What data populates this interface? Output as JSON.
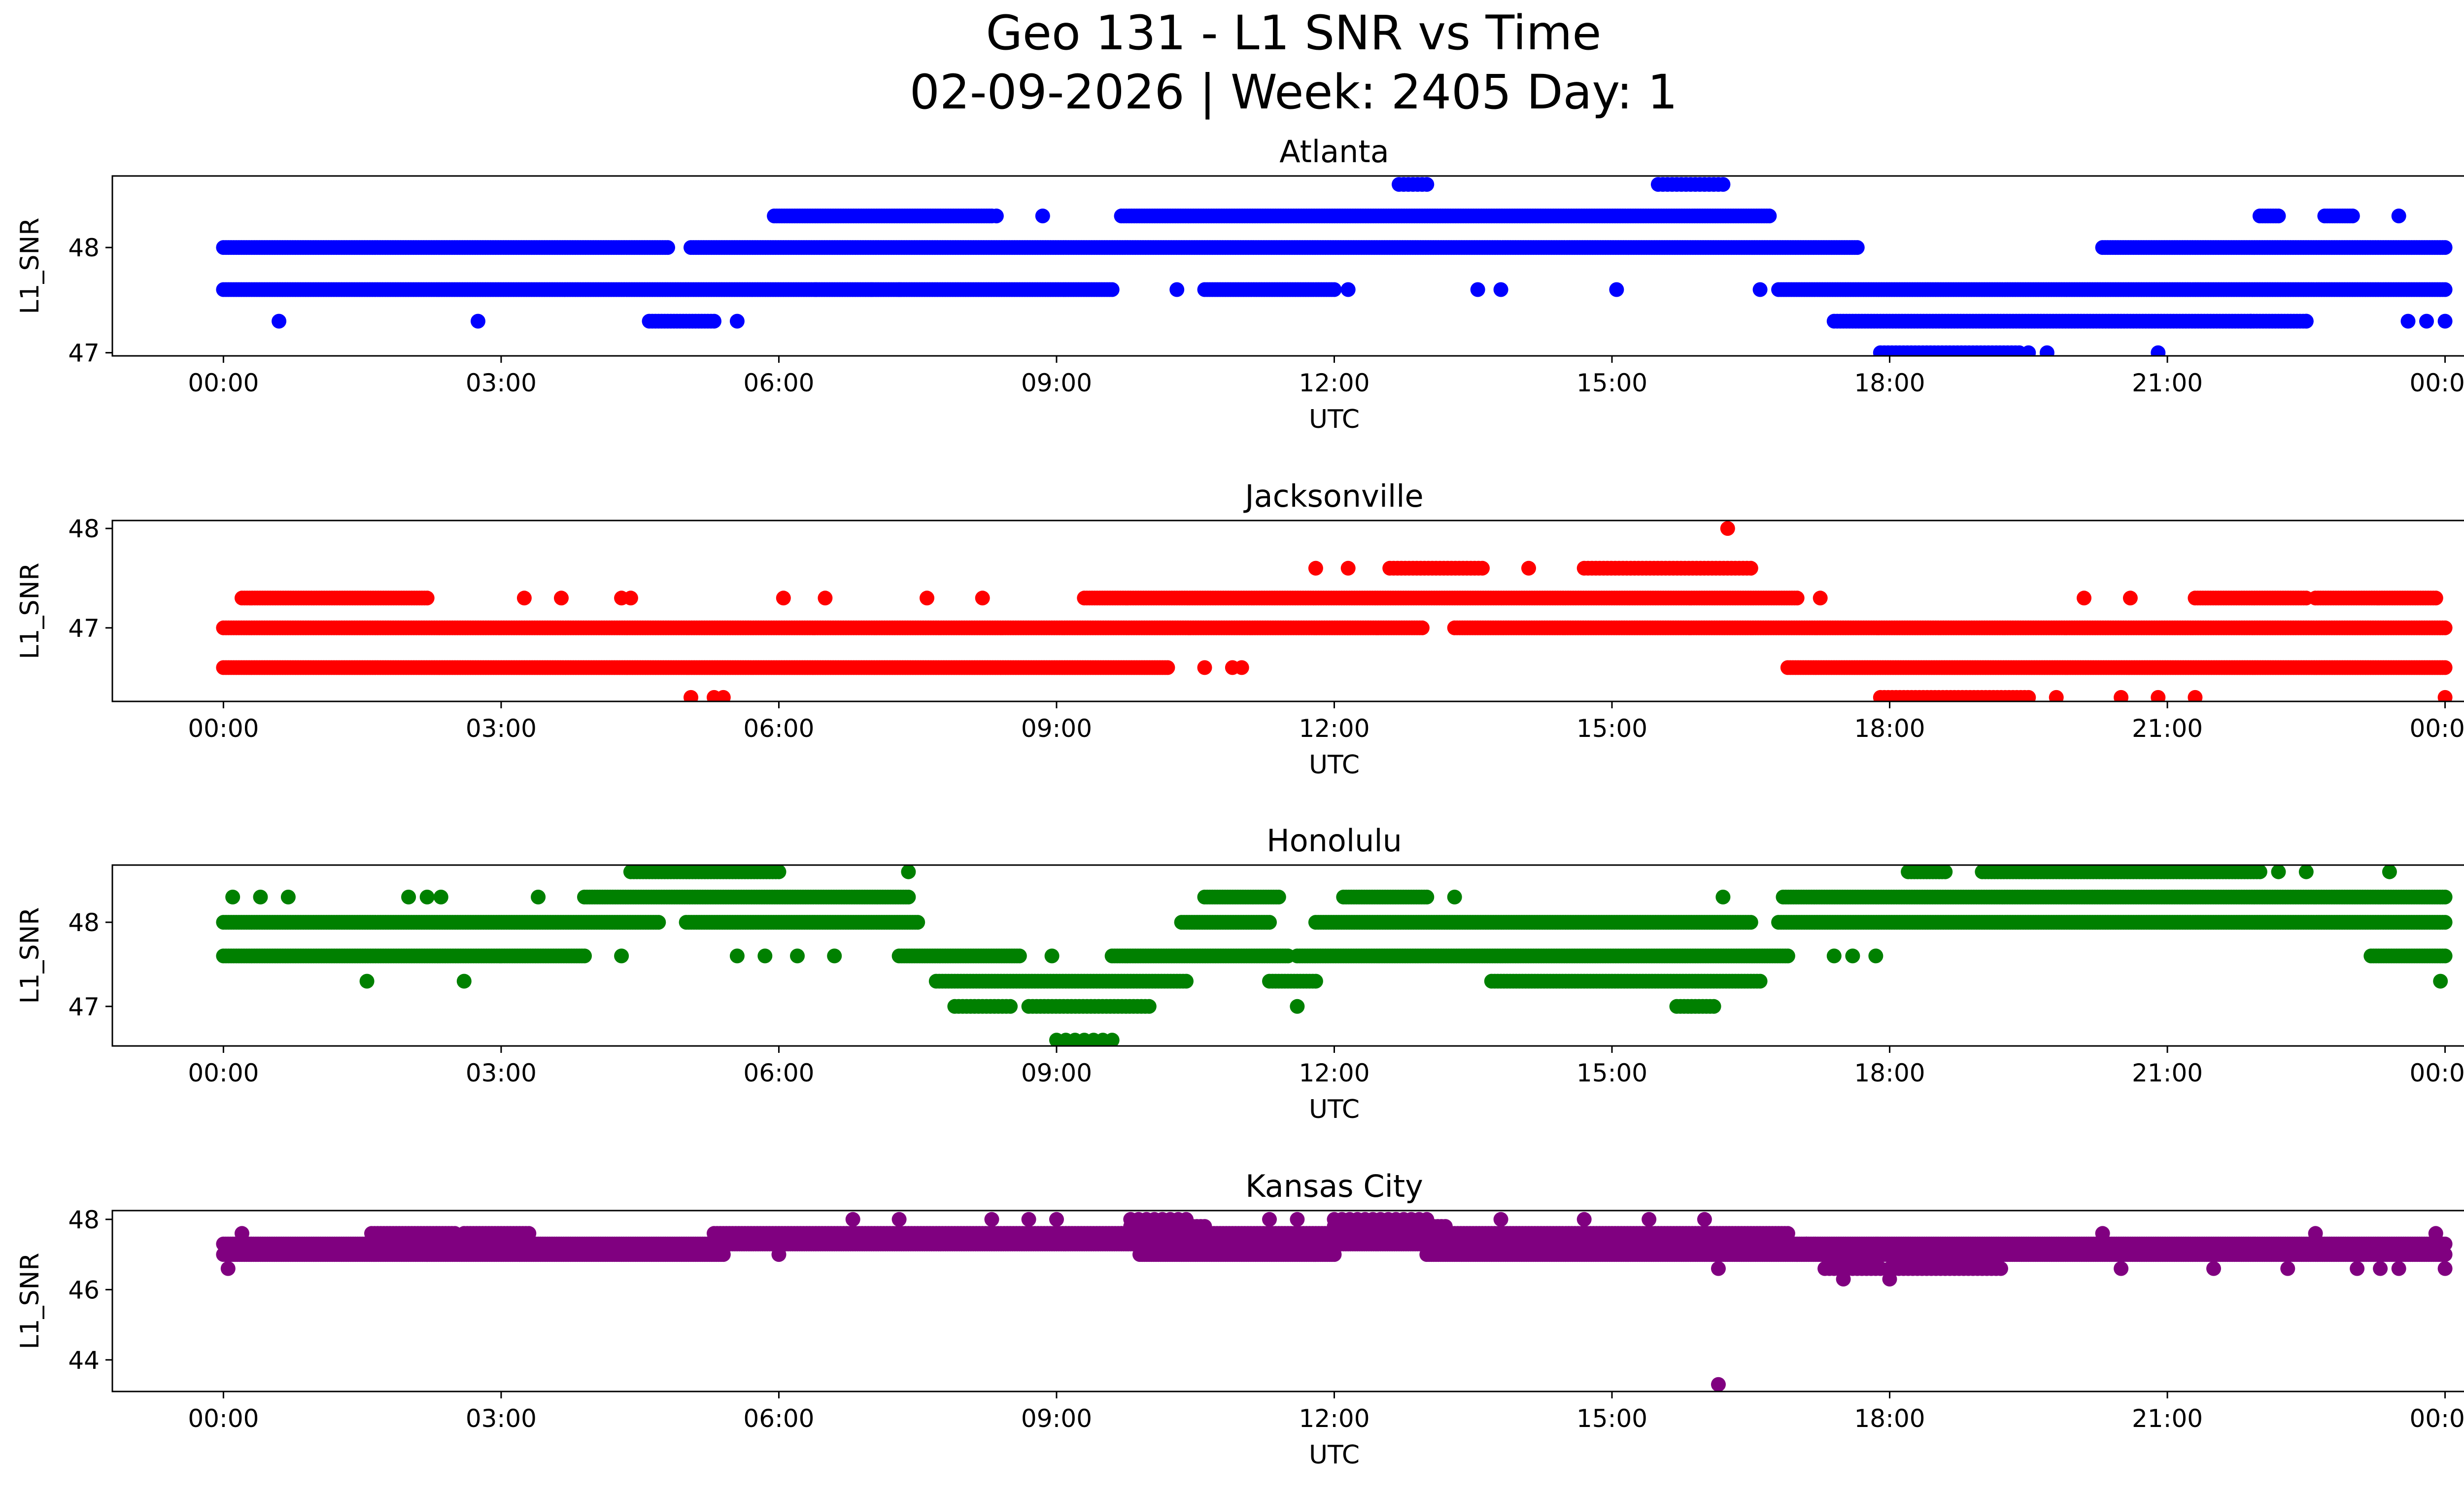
{
  "figure": {
    "title_line1": "Geo 131 - L1 SNR vs Time",
    "title_line2": "02-09-2026 | Week: 2405 Day: 1"
  },
  "chart_data": [
    {
      "type": "scatter",
      "title": "Atlanta",
      "xlabel": "UTC",
      "ylabel": "L1_SNR",
      "color": "#0000ff",
      "x_ticks": [
        "00:00",
        "03:00",
        "06:00",
        "09:00",
        "12:00",
        "15:00",
        "18:00",
        "21:00",
        "00:00"
      ],
      "xlim_hours": [
        -1.2,
        25.2
      ],
      "ylim": [
        46.97,
        48.68
      ],
      "y_ticks": [
        47,
        48
      ],
      "series": [
        {
          "y": 48.0,
          "segments": [
            [
              0.0,
              4.8
            ],
            [
              5.05,
              17.65
            ],
            [
              20.3,
              24.0
            ]
          ],
          "density": 36
        },
        {
          "y": 47.6,
          "segments": [
            [
              0.0,
              9.6
            ],
            [
              10.6,
              12.0
            ],
            [
              16.8,
              24.0
            ]
          ],
          "density": 36
        },
        {
          "y": 48.3,
          "segments": [
            [
              5.95,
              8.3
            ],
            [
              9.7,
              16.7
            ],
            [
              22.0,
              22.2
            ],
            [
              22.7,
              23.0
            ]
          ],
          "density": 36
        },
        {
          "y": 47.3,
          "segments": [
            [
              4.6,
              5.3
            ],
            [
              17.4,
              22.5
            ]
          ],
          "density": 30
        },
        {
          "y": 47.0,
          "segments": [
            [
              17.9,
              19.4
            ]
          ],
          "density": 24
        },
        {
          "y": 48.6,
          "segments": [
            [
              12.7,
              13.0
            ],
            [
              15.5,
              16.2
            ]
          ],
          "density": 20
        }
      ],
      "points": [
        [
          0.6,
          47.3
        ],
        [
          2.75,
          47.3
        ],
        [
          5.55,
          47.3
        ],
        [
          6.4,
          47.6
        ],
        [
          7.0,
          47.6
        ],
        [
          7.3,
          47.6
        ],
        [
          8.85,
          48.3
        ],
        [
          8.35,
          48.3
        ],
        [
          10.3,
          47.6
        ],
        [
          12.15,
          47.6
        ],
        [
          13.55,
          47.6
        ],
        [
          13.8,
          47.6
        ],
        [
          15.05,
          47.6
        ],
        [
          16.6,
          47.6
        ],
        [
          19.5,
          47.0
        ],
        [
          19.7,
          47.0
        ],
        [
          20.9,
          47.0
        ],
        [
          23.5,
          48.3
        ],
        [
          23.6,
          47.3
        ],
        [
          23.8,
          47.3
        ],
        [
          24.0,
          47.3
        ],
        [
          22.5,
          47.3
        ],
        [
          21.9,
          47.3
        ]
      ]
    },
    {
      "type": "scatter",
      "title": "Jacksonville",
      "xlabel": "UTC",
      "ylabel": "L1_SNR",
      "color": "#ff0000",
      "x_ticks": [
        "00:00",
        "03:00",
        "06:00",
        "09:00",
        "12:00",
        "15:00",
        "18:00",
        "21:00",
        "00:00"
      ],
      "xlim_hours": [
        -1.2,
        25.2
      ],
      "ylim": [
        46.26,
        48.08
      ],
      "y_ticks": [
        47,
        48
      ],
      "series": [
        {
          "y": 47.0,
          "segments": [
            [
              0.0,
              12.95
            ],
            [
              13.3,
              24.0
            ]
          ],
          "density": 36
        },
        {
          "y": 46.6,
          "segments": [
            [
              0.0,
              10.2
            ],
            [
              16.9,
              24.0
            ]
          ],
          "density": 36
        },
        {
          "y": 47.3,
          "segments": [
            [
              0.2,
              2.2
            ],
            [
              9.3,
              17.0
            ],
            [
              21.3,
              22.5
            ],
            [
              22.6,
              23.9
            ]
          ],
          "density": 36
        },
        {
          "y": 46.3,
          "segments": [
            [
              17.9,
              19.5
            ]
          ],
          "density": 24
        },
        {
          "y": 47.6,
          "segments": [
            [
              12.6,
              13.6
            ],
            [
              14.7,
              16.5
            ]
          ],
          "density": 24
        }
      ],
      "points": [
        [
          5.05,
          46.3
        ],
        [
          5.3,
          46.3
        ],
        [
          5.4,
          46.3
        ],
        [
          3.25,
          47.3
        ],
        [
          3.65,
          47.3
        ],
        [
          4.3,
          47.3
        ],
        [
          4.4,
          47.3
        ],
        [
          6.05,
          47.3
        ],
        [
          6.5,
          47.3
        ],
        [
          7.6,
          47.3
        ],
        [
          8.2,
          47.3
        ],
        [
          10.6,
          46.6
        ],
        [
          10.9,
          46.6
        ],
        [
          11.0,
          46.6
        ],
        [
          11.8,
          47.6
        ],
        [
          12.15,
          47.6
        ],
        [
          14.1,
          47.6
        ],
        [
          16.25,
          48.0
        ],
        [
          17.25,
          47.3
        ],
        [
          19.8,
          46.3
        ],
        [
          20.5,
          46.3
        ],
        [
          20.9,
          46.3
        ],
        [
          21.3,
          46.3
        ],
        [
          20.1,
          47.3
        ],
        [
          20.6,
          47.3
        ],
        [
          24.0,
          46.3
        ]
      ]
    },
    {
      "type": "scatter",
      "title": "Honolulu",
      "xlabel": "UTC",
      "ylabel": "L1_SNR",
      "color": "#008000",
      "x_ticks": [
        "00:00",
        "03:00",
        "06:00",
        "09:00",
        "12:00",
        "15:00",
        "18:00",
        "21:00",
        "00:00"
      ],
      "xlim_hours": [
        -1.2,
        25.2
      ],
      "ylim": [
        46.53,
        48.68
      ],
      "y_ticks": [
        47,
        48
      ],
      "series": [
        {
          "y": 48.0,
          "segments": [
            [
              0.0,
              4.7
            ],
            [
              5.0,
              7.5
            ],
            [
              10.35,
              11.3
            ],
            [
              11.8,
              16.5
            ],
            [
              16.8,
              24.0
            ]
          ],
          "density": 36
        },
        {
          "y": 47.6,
          "segments": [
            [
              0.0,
              3.9
            ],
            [
              7.3,
              8.6
            ],
            [
              9.6,
              11.5
            ],
            [
              11.6,
              16.9
            ],
            [
              23.2,
              24.0
            ]
          ],
          "density": 36
        },
        {
          "y": 48.3,
          "segments": [
            [
              3.9,
              7.4
            ],
            [
              10.6,
              11.4
            ],
            [
              12.1,
              13.0
            ],
            [
              16.85,
              24.0
            ]
          ],
          "density": 36
        },
        {
          "y": 47.3,
          "segments": [
            [
              7.7,
              10.4
            ],
            [
              13.7,
              16.6
            ],
            [
              11.3,
              11.8
            ]
          ],
          "density": 30
        },
        {
          "y": 47.0,
          "segments": [
            [
              7.9,
              8.5
            ],
            [
              8.7,
              10.0
            ],
            [
              15.7,
              16.1
            ]
          ],
          "density": 24
        },
        {
          "y": 48.6,
          "segments": [
            [
              4.4,
              6.0
            ],
            [
              18.2,
              18.6
            ],
            [
              19.0,
              22.0
            ]
          ],
          "density": 30
        },
        {
          "y": 46.6,
          "segments": [
            [
              9.0,
              9.6
            ]
          ],
          "density": 10
        }
      ],
      "points": [
        [
          0.1,
          48.3
        ],
        [
          0.4,
          48.3
        ],
        [
          0.7,
          48.3
        ],
        [
          1.55,
          47.3
        ],
        [
          2.0,
          48.3
        ],
        [
          2.2,
          48.3
        ],
        [
          2.35,
          48.3
        ],
        [
          2.6,
          47.3
        ],
        [
          3.4,
          48.3
        ],
        [
          4.3,
          47.6
        ],
        [
          5.55,
          47.6
        ],
        [
          5.85,
          47.6
        ],
        [
          6.2,
          47.6
        ],
        [
          6.6,
          47.6
        ],
        [
          7.4,
          48.6
        ],
        [
          8.95,
          47.6
        ],
        [
          11.6,
          47.0
        ],
        [
          13.3,
          48.3
        ],
        [
          16.2,
          48.3
        ],
        [
          17.4,
          47.6
        ],
        [
          17.6,
          47.6
        ],
        [
          17.85,
          47.6
        ],
        [
          22.2,
          48.6
        ],
        [
          22.5,
          48.6
        ],
        [
          23.4,
          48.6
        ],
        [
          23.95,
          47.3
        ]
      ]
    },
    {
      "type": "scatter",
      "title": "Kansas City",
      "xlabel": "UTC",
      "ylabel": "L1_SNR",
      "color": "#800080",
      "x_ticks": [
        "00:00",
        "03:00",
        "06:00",
        "09:00",
        "12:00",
        "15:00",
        "18:00",
        "21:00",
        "00:00"
      ],
      "xlim_hours": [
        -1.2,
        25.2
      ],
      "ylim": [
        43.1,
        48.25
      ],
      "y_ticks": [
        44,
        46,
        48
      ],
      "series": [
        {
          "y": 47.0,
          "segments": [
            [
              0.0,
              5.4
            ],
            [
              9.9,
              12.0
            ],
            [
              13.0,
              17.0
            ],
            [
              17.0,
              24.0
            ]
          ],
          "density": 40
        },
        {
          "y": 47.3,
          "segments": [
            [
              0.0,
              5.4
            ],
            [
              5.3,
              17.1
            ],
            [
              17.1,
              24.0
            ]
          ],
          "density": 40
        },
        {
          "y": 47.6,
          "segments": [
            [
              1.6,
              2.5
            ],
            [
              2.6,
              3.3
            ],
            [
              5.3,
              9.7
            ],
            [
              9.7,
              16.9
            ]
          ],
          "density": 30
        },
        {
          "y": 47.8,
          "segments": [
            [
              12.0,
              13.2
            ],
            [
              9.8,
              10.6
            ]
          ],
          "density": 24
        },
        {
          "y": 48.0,
          "segments": [
            [
              9.8,
              10.4
            ],
            [
              12.0,
              13.0
            ]
          ],
          "density": 12
        },
        {
          "y": 46.6,
          "segments": [
            [
              17.3,
              17.9
            ],
            [
              18.0,
              19.2
            ]
          ],
          "density": 20
        }
      ],
      "points": [
        [
          0.05,
          46.6
        ],
        [
          0.2,
          47.6
        ],
        [
          6.8,
          48.0
        ],
        [
          7.3,
          48.0
        ],
        [
          8.3,
          48.0
        ],
        [
          8.7,
          48.0
        ],
        [
          9.0,
          48.0
        ],
        [
          11.3,
          48.0
        ],
        [
          11.6,
          48.0
        ],
        [
          13.8,
          48.0
        ],
        [
          14.7,
          48.0
        ],
        [
          15.4,
          48.0
        ],
        [
          16.0,
          48.0
        ],
        [
          16.15,
          46.6
        ],
        [
          16.15,
          43.3
        ],
        [
          17.5,
          46.3
        ],
        [
          18.0,
          46.3
        ],
        [
          6.0,
          47.0
        ],
        [
          3.2,
          47.0
        ],
        [
          2.2,
          47.0
        ],
        [
          20.3,
          47.6
        ],
        [
          20.5,
          46.6
        ],
        [
          21.5,
          46.6
        ],
        [
          22.6,
          47.6
        ],
        [
          23.05,
          46.6
        ],
        [
          23.5,
          46.6
        ],
        [
          23.9,
          47.6
        ],
        [
          24.0,
          46.6
        ],
        [
          23.3,
          46.6
        ],
        [
          22.3,
          46.6
        ]
      ]
    }
  ]
}
